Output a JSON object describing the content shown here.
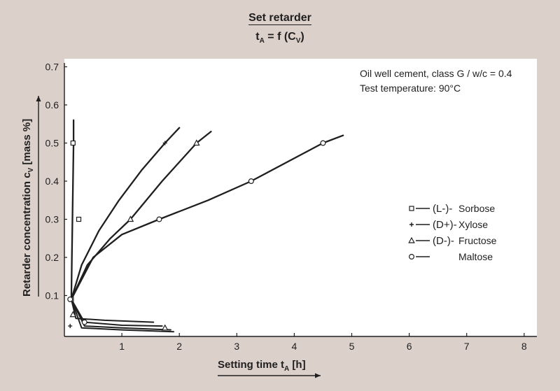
{
  "chart_data": {
    "type": "line",
    "title": "Set retarder",
    "subtitle": {
      "base": "t",
      "sub_a": "A",
      "mid": " = f (C",
      "sub_v": "V",
      "end": ")"
    },
    "xlabel": {
      "base": "Setting time t",
      "sub": "A",
      "end": " [h]"
    },
    "ylabel": {
      "base": "Retarder concentration c",
      "sub": "V",
      "end": " [mass %]"
    },
    "xlim": [
      0,
      8.3
    ],
    "ylim": [
      0,
      0.72
    ],
    "x_ticks": [
      "1",
      "2",
      "3",
      "4",
      "5",
      "6",
      "7",
      "8"
    ],
    "y_ticks": [
      "0.1",
      "0.2",
      "0.3",
      "0.4",
      "0.5",
      "0.6",
      "0.7"
    ],
    "annotations": [
      "Oil well cement, class G / w/c = 0.4",
      "Test temperature: 90°C"
    ],
    "legend_position": "right",
    "series": [
      {
        "name": "Sorbose",
        "label": "(L-)-",
        "marker": "square",
        "x": [
          0.12,
          0.15,
          0.25
        ],
        "y": [
          0.09,
          0.5,
          0.3
        ],
        "curve": {
          "x": [
            0.12,
            0.13,
            0.14,
            0.15,
            0.16,
            0.16,
            0.16
          ],
          "y": [
            0.09,
            0.2,
            0.3,
            0.4,
            0.5,
            0.55,
            0.56
          ]
        },
        "low_curve": {
          "x": [
            0.12,
            0.35,
            1.0,
            1.85
          ],
          "y": [
            0.09,
            0.02,
            0.015,
            0.01
          ]
        }
      },
      {
        "name": "Xylose",
        "label": "(D+)-",
        "marker": "plus",
        "x": [
          0.1,
          1.75
        ],
        "y": [
          0.02,
          0.5
        ],
        "curve": {
          "x": [
            0.12,
            0.3,
            0.6,
            0.95,
            1.35,
            1.75,
            2.0
          ],
          "y": [
            0.09,
            0.18,
            0.27,
            0.35,
            0.43,
            0.5,
            0.54
          ]
        },
        "low_curve": {
          "x": [
            0.12,
            0.3,
            1.0,
            1.9
          ],
          "y": [
            0.09,
            0.015,
            0.01,
            0.005
          ]
        }
      },
      {
        "name": "Fructose",
        "label": "(D-)-",
        "marker": "triangle",
        "x": [
          0.15,
          1.15,
          2.3,
          1.75
        ],
        "y": [
          0.05,
          0.3,
          0.5,
          0.015
        ],
        "curve": {
          "x": [
            0.12,
            0.4,
            0.8,
            1.15,
            1.7,
            2.3,
            2.55
          ],
          "y": [
            0.09,
            0.18,
            0.25,
            0.3,
            0.4,
            0.5,
            0.53
          ]
        },
        "low_curve": {
          "x": [
            0.12,
            0.2,
            0.7,
            1.55
          ],
          "y": [
            0.09,
            0.04,
            0.035,
            0.03
          ]
        }
      },
      {
        "name": "Maltose",
        "label": "",
        "marker": "circle",
        "x": [
          0.1,
          0.35,
          1.65,
          3.25,
          4.5
        ],
        "y": [
          0.09,
          0.03,
          0.3,
          0.4,
          0.5
        ],
        "curve": {
          "x": [
            0.12,
            0.5,
            1.0,
            1.65,
            2.5,
            3.25,
            4.5,
            4.85
          ],
          "y": [
            0.09,
            0.2,
            0.26,
            0.3,
            0.35,
            0.4,
            0.5,
            0.52
          ]
        },
        "low_curve": {
          "x": [
            0.12,
            0.35,
            1.0,
            1.7
          ],
          "y": [
            0.09,
            0.03,
            0.022,
            0.02
          ]
        }
      }
    ]
  }
}
